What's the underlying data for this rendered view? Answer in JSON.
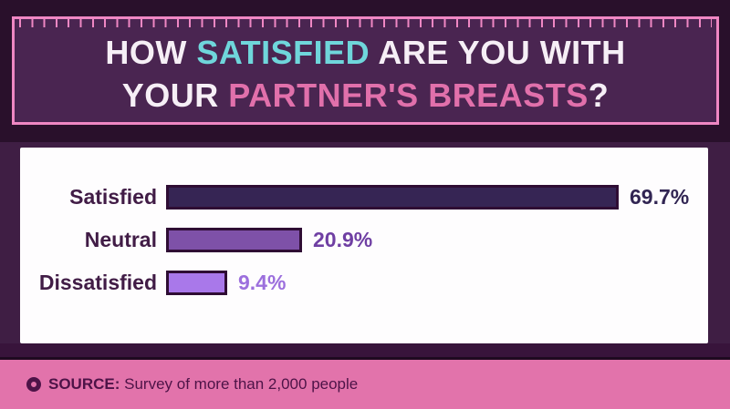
{
  "header": {
    "title_part1": "HOW ",
    "title_part2": "SATISFIED",
    "title_part3": " ARE YOU WITH",
    "title_line2_part1": "YOUR ",
    "title_line2_part2": "PARTNER'S BREASTS",
    "title_line2_part3": "?"
  },
  "chart_data": {
    "type": "bar",
    "orientation": "horizontal",
    "title": "How satisfied are you with your partner's breasts?",
    "categories": [
      "Satisfied",
      "Neutral",
      "Dissatisfied"
    ],
    "values": [
      69.7,
      20.9,
      9.4
    ],
    "value_labels": [
      "69.7%",
      "20.9%",
      "9.4%"
    ],
    "xlim": [
      0,
      100
    ],
    "grid": false,
    "legend": false,
    "bar_colors": [
      "#362554",
      "#7e51a8",
      "#a978ea"
    ],
    "bar_border_color": "#2f0d34",
    "value_colors": [
      "#312553",
      "#6f3fa3",
      "#9c6fdd"
    ],
    "label_color": "#411c46"
  },
  "footer": {
    "source_label": "SOURCE:",
    "source_text": " Survey of more than 2,000 people"
  },
  "colors": {
    "page_background_top": "#29102b",
    "page_background_mid": "#3f1e44",
    "header_box_fill": "#4a2551",
    "header_border_pink": "#ef87c3",
    "title_white": "#f6eff6",
    "title_teal": "#6fd6db",
    "title_pink": "#e170ab",
    "panel_white": "#fefdfe",
    "footer_pink": "#e273ab",
    "footer_text": "#4d1347"
  }
}
